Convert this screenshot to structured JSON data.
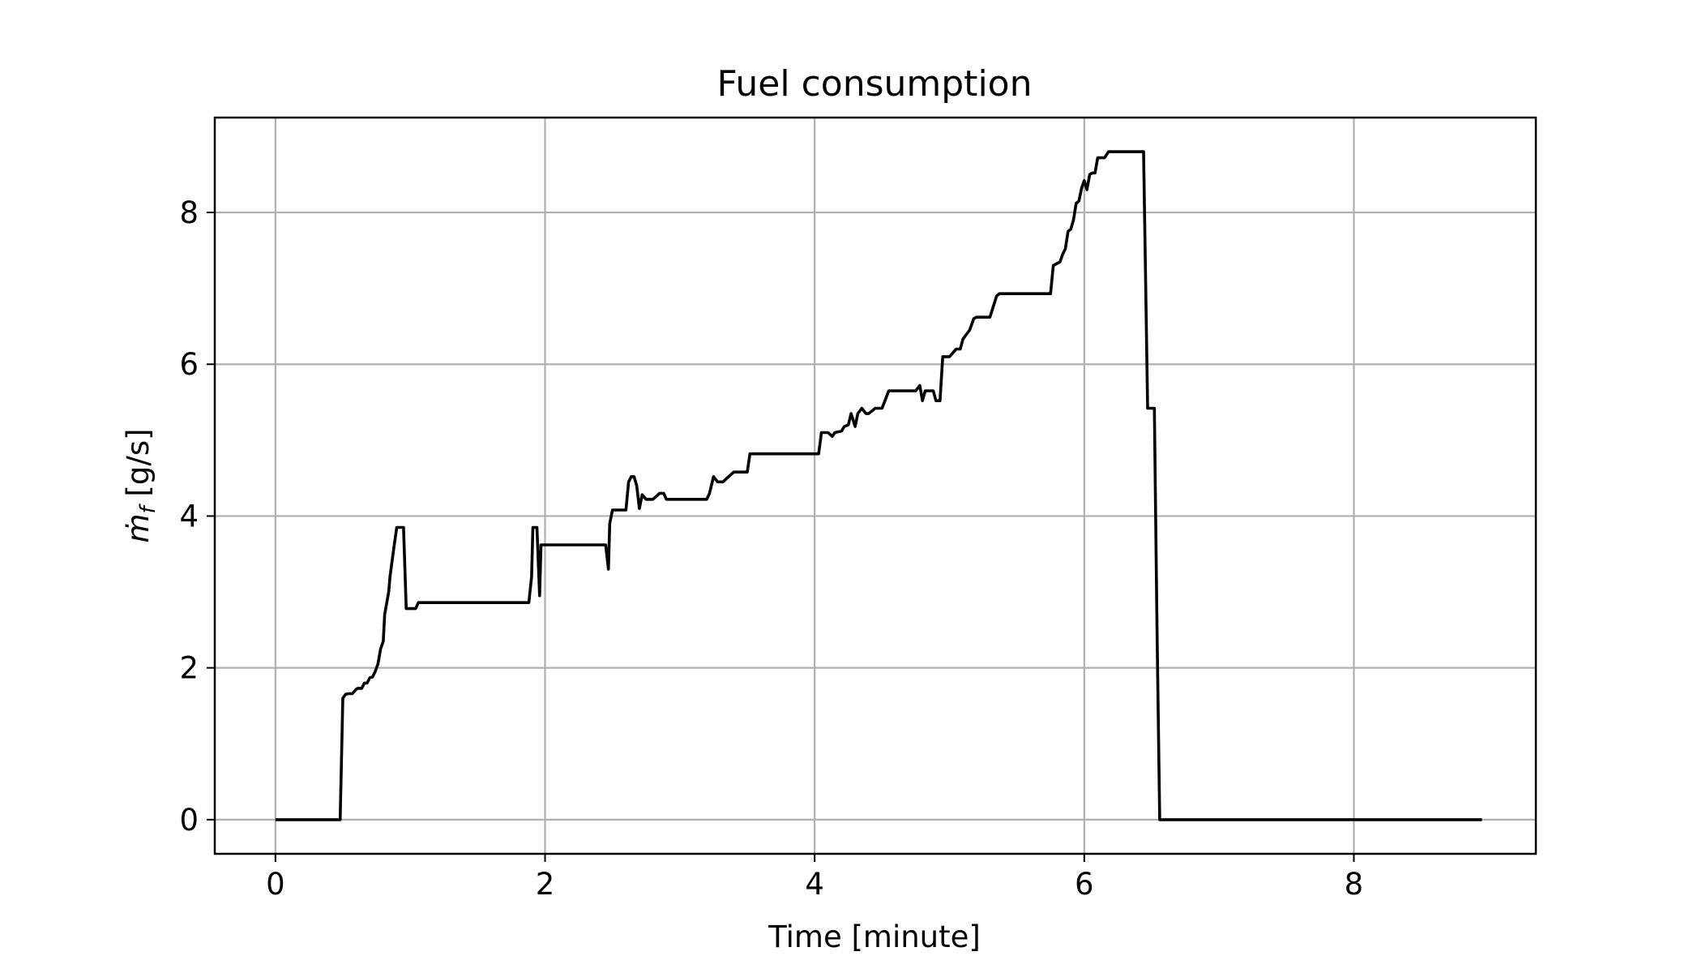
{
  "chart_data": {
    "type": "line",
    "title": "Fuel consumption",
    "xlabel": "Time [minute]",
    "ylabel": "ṁ_f [g/s]",
    "ylabel_base": "ṁ",
    "ylabel_sub": "f",
    "ylabel_unit": " [g/s]",
    "xlim": [
      -0.45,
      9.35
    ],
    "ylim": [
      -0.45,
      9.25
    ],
    "xticks": [
      0,
      2,
      4,
      6,
      8
    ],
    "yticks": [
      0,
      2,
      4,
      6,
      8
    ],
    "xtick_labels": [
      "0",
      "2",
      "4",
      "6",
      "8"
    ],
    "ytick_labels": [
      "0",
      "2",
      "4",
      "6",
      "8"
    ],
    "grid": true,
    "line_color": "#000000",
    "grid_color": "#b0b0b0",
    "series": [
      {
        "x": [
          0,
          0.48,
          0.5,
          0.52,
          0.54,
          0.57,
          0.6,
          0.61,
          0.64,
          0.66,
          0.68,
          0.7,
          0.72,
          0.74,
          0.76,
          0.78,
          0.8,
          0.81,
          0.83,
          0.84,
          0.85,
          0.88,
          0.9,
          0.93,
          0.95,
          0.97,
          1.0,
          1.04,
          1.06,
          1.11,
          1.12,
          1.88,
          1.9,
          1.91,
          1.94,
          1.96,
          1.97,
          2.0,
          2.45,
          2.47,
          2.48,
          2.5,
          2.52,
          2.6,
          2.62,
          2.64,
          2.66,
          2.68,
          2.7,
          2.72,
          2.75,
          2.8,
          2.85,
          2.88,
          2.9,
          3.2,
          3.22,
          3.25,
          3.28,
          3.32,
          3.35,
          3.4,
          3.47,
          3.5,
          3.52,
          4.03,
          4.05,
          4.1,
          4.13,
          4.15,
          4.2,
          4.22,
          4.25,
          4.27,
          4.3,
          4.32,
          4.35,
          4.38,
          4.4,
          4.45,
          4.5,
          4.55,
          4.57,
          4.6,
          4.75,
          4.78,
          4.8,
          4.82,
          4.85,
          4.88,
          4.9,
          4.93,
          4.95,
          5.0,
          5.05,
          5.08,
          5.1,
          5.12,
          5.15,
          5.18,
          5.2,
          5.22,
          5.25,
          5.3,
          5.35,
          5.37,
          5.4,
          5.75,
          5.77,
          5.82,
          5.84,
          5.86,
          5.88,
          5.9,
          5.92,
          5.94,
          5.96,
          5.98,
          6.0,
          6.02,
          6.04,
          6.06,
          6.08,
          6.1,
          6.12,
          6.15,
          6.18,
          6.21,
          6.23,
          6.25,
          6.44,
          6.47,
          6.52,
          6.54,
          6.56,
          8.95
        ],
        "y": [
          0,
          0,
          1.6,
          1.65,
          1.66,
          1.66,
          1.72,
          1.73,
          1.73,
          1.8,
          1.8,
          1.87,
          1.88,
          1.95,
          2.05,
          2.25,
          2.35,
          2.7,
          2.9,
          3.0,
          3.2,
          3.6,
          3.85,
          3.85,
          3.85,
          2.78,
          2.78,
          2.78,
          2.86,
          2.86,
          2.86,
          2.86,
          3.2,
          3.85,
          3.85,
          2.95,
          3.62,
          3.62,
          3.62,
          3.3,
          3.9,
          4.08,
          4.08,
          4.08,
          4.45,
          4.52,
          4.52,
          4.4,
          4.1,
          4.28,
          4.22,
          4.22,
          4.3,
          4.3,
          4.22,
          4.22,
          4.3,
          4.52,
          4.45,
          4.45,
          4.5,
          4.58,
          4.58,
          4.58,
          4.82,
          4.82,
          5.1,
          5.1,
          5.05,
          5.1,
          5.12,
          5.18,
          5.2,
          5.35,
          5.18,
          5.35,
          5.42,
          5.35,
          5.35,
          5.42,
          5.42,
          5.65,
          5.65,
          5.65,
          5.65,
          5.72,
          5.52,
          5.65,
          5.65,
          5.65,
          5.52,
          5.52,
          6.1,
          6.1,
          6.2,
          6.2,
          6.33,
          6.38,
          6.45,
          6.6,
          6.62,
          6.62,
          6.62,
          6.62,
          6.9,
          6.93,
          6.93,
          6.93,
          7.3,
          7.35,
          7.45,
          7.52,
          7.75,
          7.78,
          7.9,
          8.12,
          8.15,
          8.32,
          8.42,
          8.3,
          8.5,
          8.52,
          8.52,
          8.72,
          8.72,
          8.72,
          8.8,
          8.8,
          8.8,
          8.8,
          8.8,
          5.42,
          5.42,
          2.5,
          0,
          0
        ]
      }
    ]
  }
}
